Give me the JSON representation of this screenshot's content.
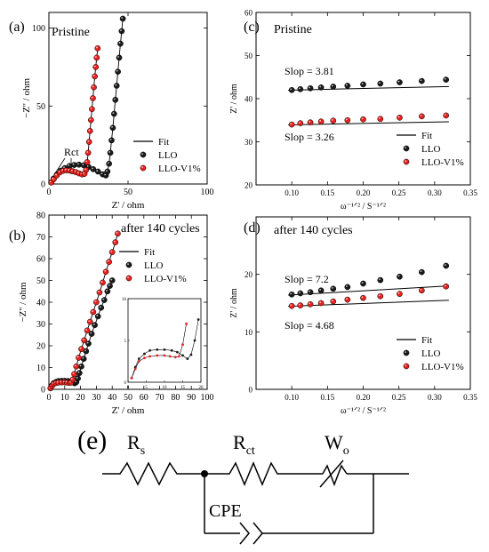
{
  "figure": {
    "panels": [
      {
        "id": "a",
        "label": "(a)",
        "title": "Pristine"
      },
      {
        "id": "b",
        "label": "(b)",
        "title": "after 140 cycles"
      },
      {
        "id": "c",
        "label": "(c)",
        "title": "Pristine"
      },
      {
        "id": "d",
        "label": "(d)",
        "title": "after 140 cycles"
      },
      {
        "id": "e",
        "label": "(e)"
      }
    ],
    "series_colors": {
      "LLO": "#1a1a1a",
      "LLO-V1%": "#e8201c"
    },
    "legend_entries": [
      "Fit",
      "LLO",
      "LLO-V1%"
    ]
  },
  "chart_data": [
    {
      "id": "a",
      "type": "scatter",
      "title": "Pristine",
      "xlabel": "Z' / ohm",
      "ylabel": "−Z'' / ohm",
      "xlim": [
        0,
        100
      ],
      "ylim": [
        0,
        110
      ],
      "xticks": [
        0,
        50,
        100
      ],
      "yticks": [
        0,
        50,
        100
      ],
      "xticklabels": [
        "0",
        "50",
        "100"
      ],
      "yticklabels": [
        "0",
        "50",
        "100"
      ],
      "legend": [
        "Fit",
        "LLO",
        "LLO-V1%"
      ],
      "legend_position": "center-right",
      "annotations": [
        "Rct"
      ],
      "series": [
        {
          "name": "LLO",
          "color": "#1a1a1a",
          "points": [
            [
              1.5,
              1.0
            ],
            [
              3,
              3.5
            ],
            [
              5,
              6
            ],
            [
              7.5,
              8.5
            ],
            [
              10,
              10.2
            ],
            [
              13,
              11.5
            ],
            [
              16,
              12.2
            ],
            [
              19,
              12.4
            ],
            [
              22,
              12
            ],
            [
              25,
              11
            ],
            [
              28,
              9.5
            ],
            [
              31,
              8
            ],
            [
              34,
              6.2
            ],
            [
              36,
              5.5
            ],
            [
              37,
              8
            ],
            [
              38,
              13
            ],
            [
              38.8,
              20
            ],
            [
              39.6,
              28
            ],
            [
              40.4,
              36
            ],
            [
              41.2,
              45
            ],
            [
              42,
              54
            ],
            [
              42.8,
              63
            ],
            [
              43.6,
              72
            ],
            [
              44.4,
              81
            ],
            [
              45.2,
              90
            ],
            [
              46,
              98
            ],
            [
              46.7,
              106
            ]
          ]
        },
        {
          "name": "LLO-V1%",
          "color": "#e8201c",
          "points": [
            [
              1.5,
              1.0
            ],
            [
              3,
              3
            ],
            [
              5,
              5.5
            ],
            [
              7,
              7.5
            ],
            [
              9,
              8.5
            ],
            [
              11,
              8.8
            ],
            [
              13,
              8.6
            ],
            [
              15,
              8.2
            ],
            [
              17,
              7.6
            ],
            [
              19,
              6.8
            ],
            [
              21,
              6.2
            ],
            [
              22.5,
              6.5
            ],
            [
              23.5,
              9
            ],
            [
              24.2,
              14
            ],
            [
              24.8,
              20
            ],
            [
              25.4,
              27
            ],
            [
              26,
              34
            ],
            [
              26.6,
              41
            ],
            [
              27.2,
              48
            ],
            [
              27.8,
              55
            ],
            [
              28.4,
              62
            ],
            [
              29,
              69
            ],
            [
              29.6,
              75
            ],
            [
              30.2,
              81
            ],
            [
              30.8,
              87
            ]
          ]
        }
      ]
    },
    {
      "id": "b",
      "type": "scatter",
      "title": "after 140 cycles",
      "xlabel": "Z' / ohm",
      "ylabel": "−Z'' / ohm",
      "xlim": [
        0,
        100
      ],
      "ylim": [
        0,
        80
      ],
      "xticks": [
        0,
        10,
        20,
        30,
        40,
        50,
        60,
        70,
        80,
        90,
        100
      ],
      "yticks": [
        0,
        10,
        20,
        30,
        40,
        50,
        60,
        70,
        80
      ],
      "xticklabels": [
        "0",
        "10",
        "20",
        "30",
        "40",
        "50",
        "60",
        "70",
        "80",
        "90",
        "100"
      ],
      "yticklabels": [
        "0",
        "10",
        "20",
        "30",
        "40",
        "50",
        "60",
        "70",
        "80"
      ],
      "legend": [
        "Fit",
        "LLO",
        "LLO-V1%"
      ],
      "legend_position": "top-right",
      "inset": {
        "xlim": [
          0,
          20
        ],
        "ylim": [
          0,
          10
        ],
        "xticks": [
          0,
          5,
          10,
          15,
          20
        ],
        "yticks": [
          0,
          5,
          10
        ],
        "xticklabels": [
          "0",
          "5",
          "10",
          "15",
          "20"
        ],
        "yticklabels": [
          "0",
          "5",
          "10"
        ]
      },
      "series": [
        {
          "name": "LLO",
          "color": "#1a1a1a",
          "points": [
            [
              1,
              0.5
            ],
            [
              2,
              1.8
            ],
            [
              3,
              2.8
            ],
            [
              4.5,
              3.4
            ],
            [
              6,
              3.8
            ],
            [
              8,
              3.9
            ],
            [
              10,
              3.9
            ],
            [
              12,
              3.8
            ],
            [
              13.5,
              3.6
            ],
            [
              15,
              3.2
            ],
            [
              16.3,
              2.8
            ],
            [
              17.3,
              3.3
            ],
            [
              18.3,
              5
            ],
            [
              19.3,
              7.5
            ],
            [
              20.5,
              10.5
            ],
            [
              22,
              14
            ],
            [
              23.5,
              17.5
            ],
            [
              25,
              21
            ],
            [
              27,
              25.5
            ],
            [
              29,
              29.5
            ],
            [
              31,
              33.5
            ],
            [
              33,
              37.5
            ],
            [
              35,
              41
            ],
            [
              37,
              45
            ],
            [
              38.5,
              47.5
            ],
            [
              40,
              50
            ]
          ]
        },
        {
          "name": "LLO-V1%",
          "color": "#e8201c",
          "points": [
            [
              1,
              0.5
            ],
            [
              2,
              1.6
            ],
            [
              3,
              2.5
            ],
            [
              4.5,
              2.9
            ],
            [
              6,
              3.1
            ],
            [
              8,
              3.2
            ],
            [
              10,
              3.2
            ],
            [
              11.5,
              3.1
            ],
            [
              13,
              3.0
            ],
            [
              14,
              3.1
            ],
            [
              15,
              4.5
            ],
            [
              16,
              7
            ],
            [
              17.3,
              10.5
            ],
            [
              18.8,
              14.5
            ],
            [
              20.5,
              18.5
            ],
            [
              22.3,
              22.5
            ],
            [
              24.2,
              27
            ],
            [
              26,
              31
            ],
            [
              28,
              35.5
            ],
            [
              30,
              40
            ],
            [
              32,
              44.5
            ],
            [
              34,
              49
            ],
            [
              36,
              54
            ],
            [
              38,
              58.5
            ],
            [
              40,
              63
            ],
            [
              42,
              67.5
            ],
            [
              43.5,
              71.5
            ]
          ]
        }
      ]
    },
    {
      "id": "c",
      "type": "scatter",
      "title": "Pristine",
      "xlabel": "ω⁻¹ᐟ² / S⁻¹ᐟ²",
      "ylabel": "Z' / ohm",
      "xlim": [
        0.05,
        0.35
      ],
      "ylim": [
        20,
        60
      ],
      "xticks": [
        0.1,
        0.15,
        0.2,
        0.25,
        0.3,
        0.35
      ],
      "yticks": [
        20,
        30,
        40,
        50,
        60
      ],
      "xticklabels": [
        "0.10",
        "0.15",
        "0.20",
        "0.25",
        "0.30",
        "0.35"
      ],
      "yticklabels": [
        "20",
        "30",
        "40",
        "50",
        "60"
      ],
      "legend": [
        "Fit",
        "LLO",
        "LLO-V1%"
      ],
      "legend_position": "bottom-right",
      "annotations": [
        "Slop = 3.81",
        "Slop = 3.26"
      ],
      "series": [
        {
          "name": "LLO",
          "color": "#1a1a1a",
          "x": [
            0.1,
            0.112,
            0.126,
            0.141,
            0.158,
            0.178,
            0.2,
            0.224,
            0.251,
            0.282,
            0.316
          ],
          "y": [
            42.0,
            42.2,
            42.4,
            42.6,
            42.8,
            43.0,
            43.3,
            43.5,
            43.8,
            44.1,
            44.4
          ],
          "slope": 3.81,
          "intercept": 41.6
        },
        {
          "name": "LLO-V1%",
          "color": "#e8201c",
          "x": [
            0.1,
            0.112,
            0.126,
            0.141,
            0.158,
            0.178,
            0.2,
            0.224,
            0.251,
            0.282,
            0.316
          ],
          "y": [
            34.0,
            34.3,
            34.5,
            34.7,
            34.9,
            35.0,
            35.2,
            35.3,
            35.6,
            35.9,
            36.1
          ],
          "slope": 3.26,
          "intercept": 33.6
        }
      ]
    },
    {
      "id": "d",
      "type": "scatter",
      "title": "after 140 cycles",
      "xlabel": "ω⁻¹ᐟ² / S⁻¹ᐟ²",
      "ylabel": "Z' / ohm",
      "xlim": [
        0.05,
        0.35
      ],
      "ylim": [
        0,
        30
      ],
      "xticks": [
        0.1,
        0.15,
        0.2,
        0.25,
        0.3,
        0.35
      ],
      "yticks": [
        0,
        10,
        20
      ],
      "xticklabels": [
        "0.10",
        "0.15",
        "0.20",
        "0.25",
        "0.30",
        "0.35"
      ],
      "yticklabels": [
        "0",
        "10",
        "20"
      ],
      "legend": [
        "Fit",
        "LLO",
        "LLO-V1%"
      ],
      "legend_position": "bottom-right",
      "annotations": [
        "Slop = 7.2",
        "Slop = 4.68"
      ],
      "series": [
        {
          "name": "LLO",
          "color": "#1a1a1a",
          "x": [
            0.1,
            0.112,
            0.126,
            0.141,
            0.158,
            0.178,
            0.2,
            0.224,
            0.251,
            0.282,
            0.316
          ],
          "y": [
            16.5,
            16.7,
            16.9,
            17.2,
            17.5,
            17.8,
            18.4,
            19.0,
            19.6,
            20.4,
            21.5
          ],
          "slope": 7.2,
          "intercept": 15.7
        },
        {
          "name": "LLO-V1%",
          "color": "#e8201c",
          "x": [
            0.1,
            0.112,
            0.126,
            0.141,
            0.158,
            0.178,
            0.2,
            0.224,
            0.251,
            0.282,
            0.316
          ],
          "y": [
            14.5,
            14.6,
            14.8,
            15.0,
            15.3,
            15.6,
            15.9,
            16.2,
            16.6,
            17.2,
            17.9
          ],
          "slope": 4.68,
          "intercept": 14.0
        }
      ]
    }
  ],
  "circuit": {
    "label": "(e)",
    "rs": {
      "main": "R",
      "sub": "s"
    },
    "rct": {
      "main": "R",
      "sub": "ct"
    },
    "wo": {
      "main": "W",
      "sub": "o"
    },
    "cpe": "CPE"
  }
}
